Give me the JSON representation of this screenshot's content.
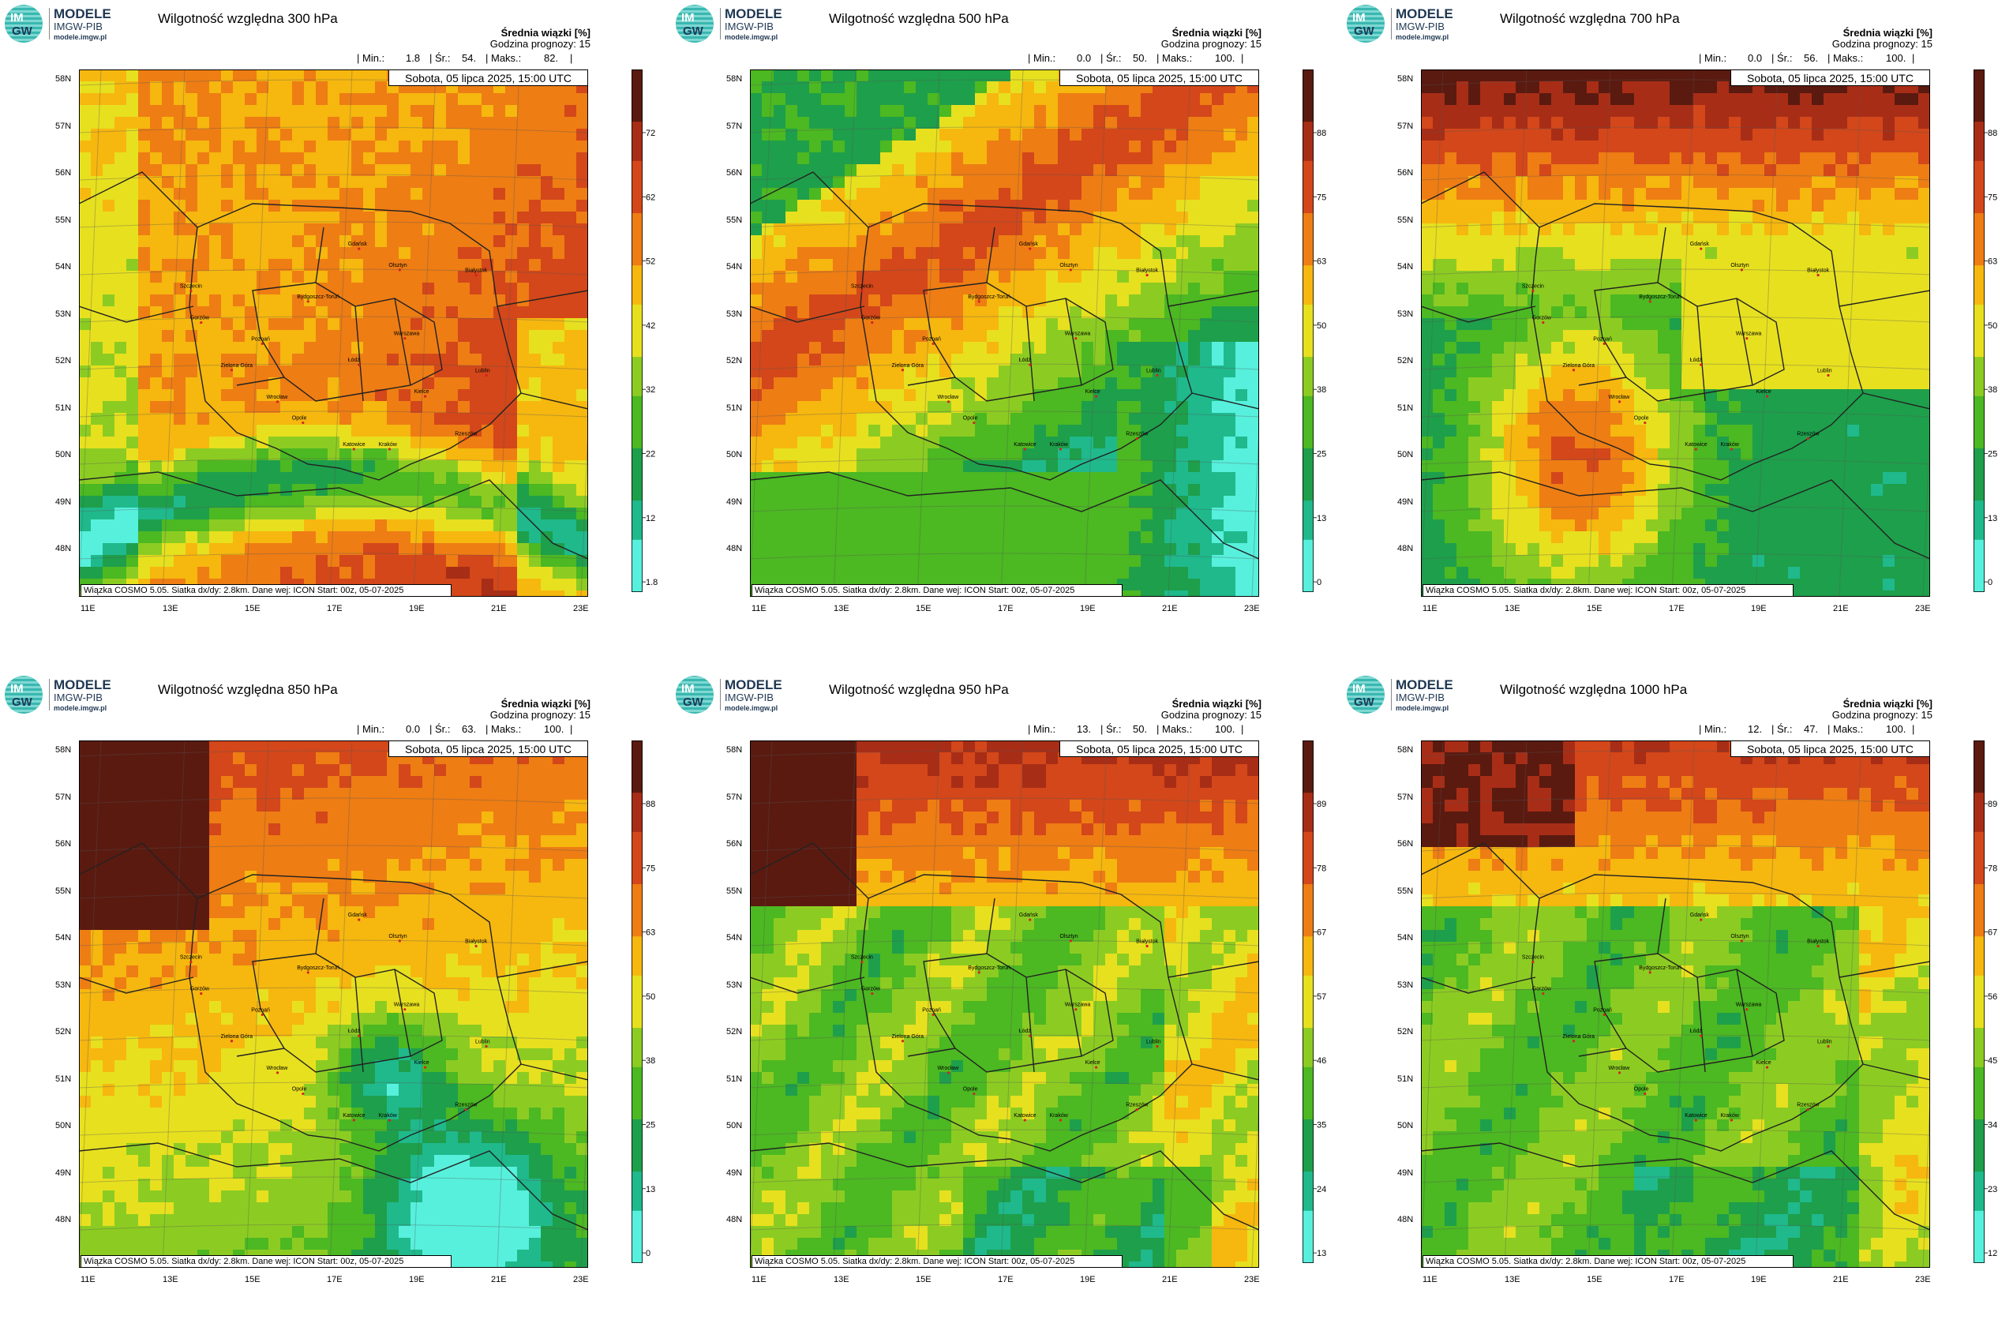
{
  "logo": {
    "line1": "MODELE",
    "line2": "IMGW-PIB",
    "line3": "modele.imgw.pl",
    "badge_top": "IM",
    "badge_bottom": "GW"
  },
  "common": {
    "legend_title": "Średnia wiązki [%]",
    "forecast_hour": "Godzina prognozy: 15",
    "date": "Sobota, 05 lipca 2025, 15:00 UTC",
    "footer": "Wiązka COSMO 5.05. Siatka dx/dy: 2.8km. Dane wej: ICON Start: 00z, 05-07-2025",
    "min_label": "| Min.:",
    "mean_label": "| Śr.:",
    "max_label": "| Maks.:",
    "end_bar": "|",
    "lat_labels": [
      "58N",
      "57N",
      "56N",
      "55N",
      "54N",
      "53N",
      "52N",
      "51N",
      "50N",
      "49N",
      "48N"
    ],
    "lon_labels": [
      "11E",
      "13E",
      "15E",
      "17E",
      "19E",
      "21E",
      "23E"
    ]
  },
  "panels": [
    {
      "title": "Wilgotność względna 300 hPa",
      "min": "1.8",
      "mean": "54.",
      "max": "82.",
      "ticks": [
        "72",
        "62",
        "52",
        "42",
        "32",
        "22",
        "12",
        "1.8"
      ],
      "dominant": "warm"
    },
    {
      "title": "Wilgotność względna 500 hPa",
      "min": "0.0",
      "mean": "50.",
      "max": "100.",
      "ticks": [
        "88",
        "75",
        "63",
        "50",
        "38",
        "25",
        "13",
        "0"
      ],
      "dominant": "mixed"
    },
    {
      "title": "Wilgotność względna 700 hPa",
      "min": "0.0",
      "mean": "56.",
      "max": "100.",
      "ticks": [
        "88",
        "75",
        "63",
        "50",
        "38",
        "25",
        "13",
        "0"
      ],
      "dominant": "mixed"
    },
    {
      "title": "Wilgotność względna 850 hPa",
      "min": "0.0",
      "mean": "63.",
      "max": "100.",
      "ticks": [
        "88",
        "75",
        "63",
        "50",
        "38",
        "25",
        "13",
        "0"
      ],
      "dominant": "warm"
    },
    {
      "title": "Wilgotność względna 950 hPa",
      "min": "13.",
      "mean": "50.",
      "max": "100.",
      "ticks": [
        "89",
        "78",
        "67",
        "57",
        "46",
        "35",
        "24",
        "13"
      ],
      "dominant": "green"
    },
    {
      "title": "Wilgotność względna 1000 hPa",
      "min": "12.",
      "mean": "47.",
      "max": "100.",
      "ticks": [
        "89",
        "78",
        "67",
        "56",
        "45",
        "34",
        "23",
        "12"
      ],
      "dominant": "green"
    }
  ],
  "cities": [
    "Gdańsk",
    "Olsztyn",
    "Białystok",
    "Szczecin",
    "Bydgoszcz-Toruń",
    "Gorzów",
    "Poznań",
    "Warszawa",
    "Zielona Góra",
    "Łódź",
    "Lublin",
    "Wrocław",
    "Kielce",
    "Opole",
    "Rzeszów",
    "Katowice",
    "Kraków"
  ],
  "colors": {
    "scale": [
      "#57f0dc",
      "#1fb98c",
      "#1e9f4b",
      "#4cb822",
      "#8ccc22",
      "#e7e01f",
      "#f6b70f",
      "#ee7d14",
      "#d3471a",
      "#a82d16",
      "#5a1a10"
    ]
  }
}
